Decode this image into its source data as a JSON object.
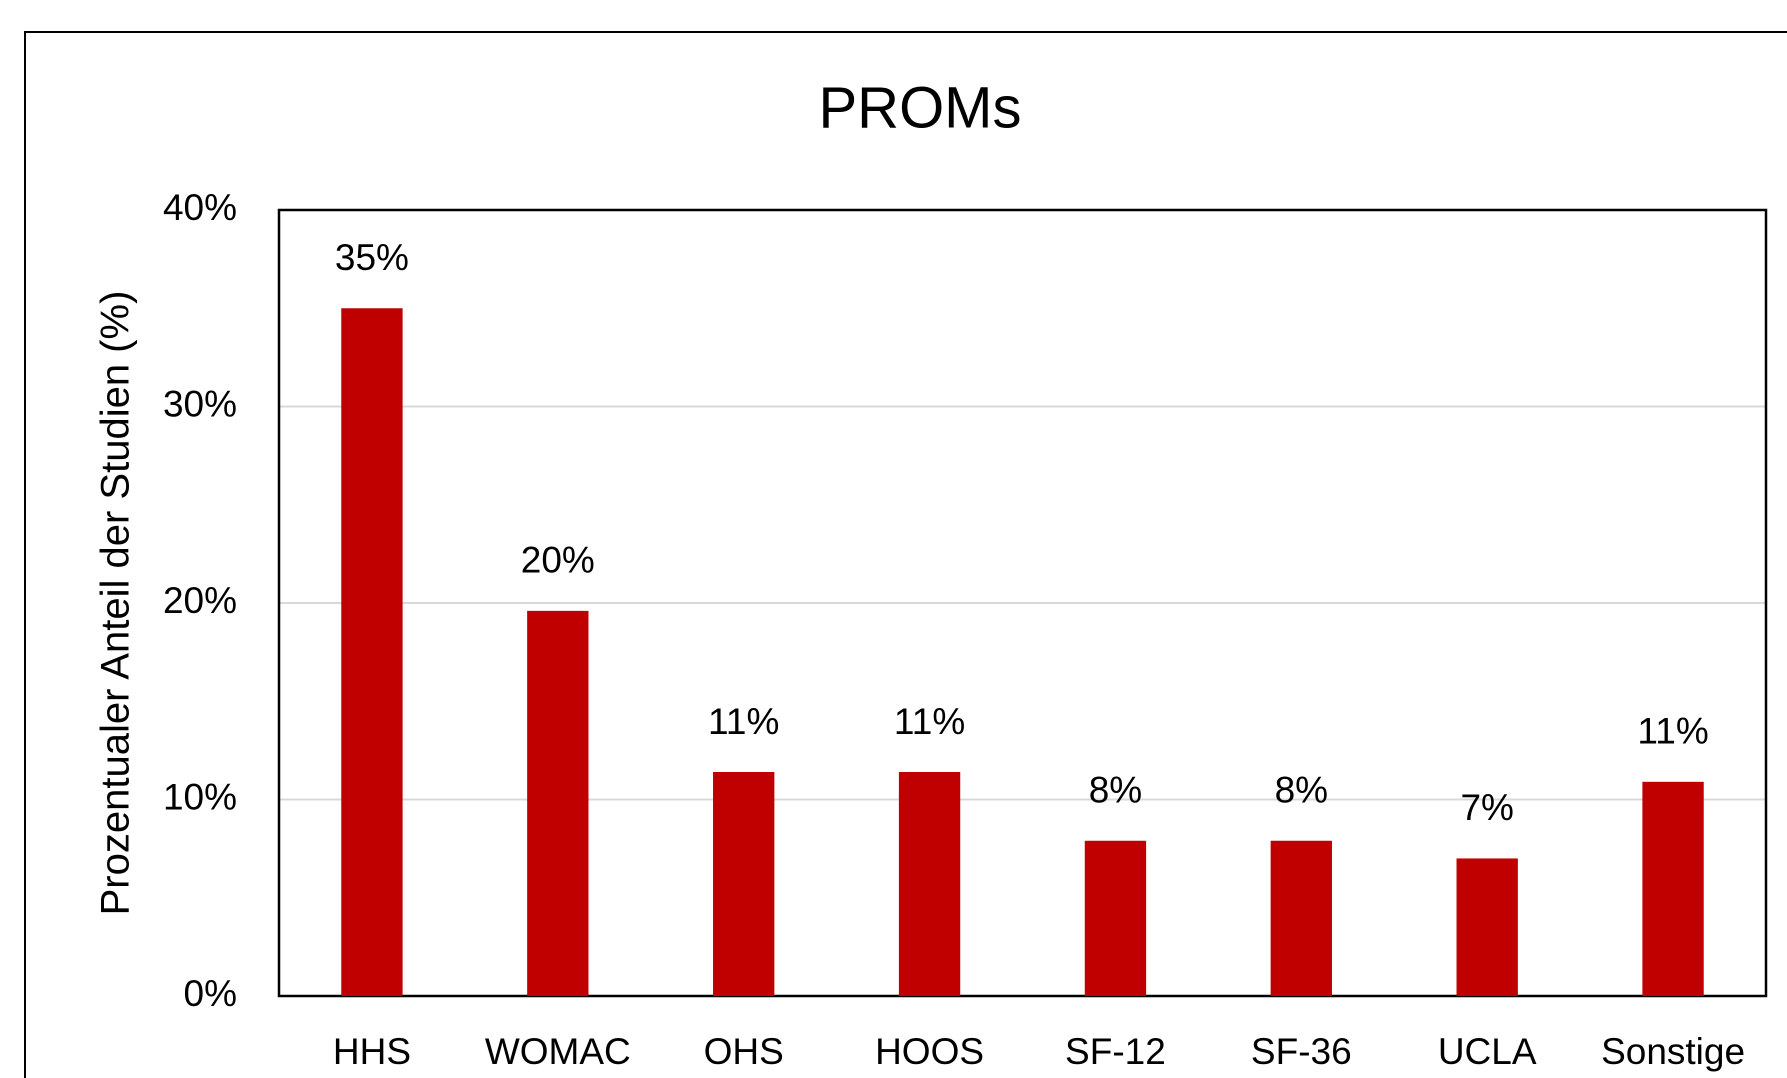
{
  "chart_data": {
    "type": "bar",
    "title": "PROMs",
    "y_label": "Prozentualer Anteil der Studien (%)",
    "categories": [
      "HHS",
      "WOMAC",
      "OHS",
      "HOOS",
      "SF-12",
      "SF-36",
      "UCLA",
      "Sonstige"
    ],
    "values": [
      35,
      19.6,
      11.4,
      11.4,
      7.9,
      7.9,
      7.0,
      10.9
    ],
    "value_labels": [
      "35%",
      "20%",
      "11%",
      "11%",
      "8%",
      "8%",
      "7%",
      "11%"
    ],
    "color": "#c00000",
    "ylim": [
      0,
      40
    ],
    "yticks": [
      {
        "value": 0,
        "label": "0%"
      },
      {
        "value": 10,
        "label": "10%"
      },
      {
        "value": 20,
        "label": "20%"
      },
      {
        "value": 30,
        "label": "30%"
      },
      {
        "value": 40,
        "label": "40%"
      }
    ],
    "grid": true
  }
}
